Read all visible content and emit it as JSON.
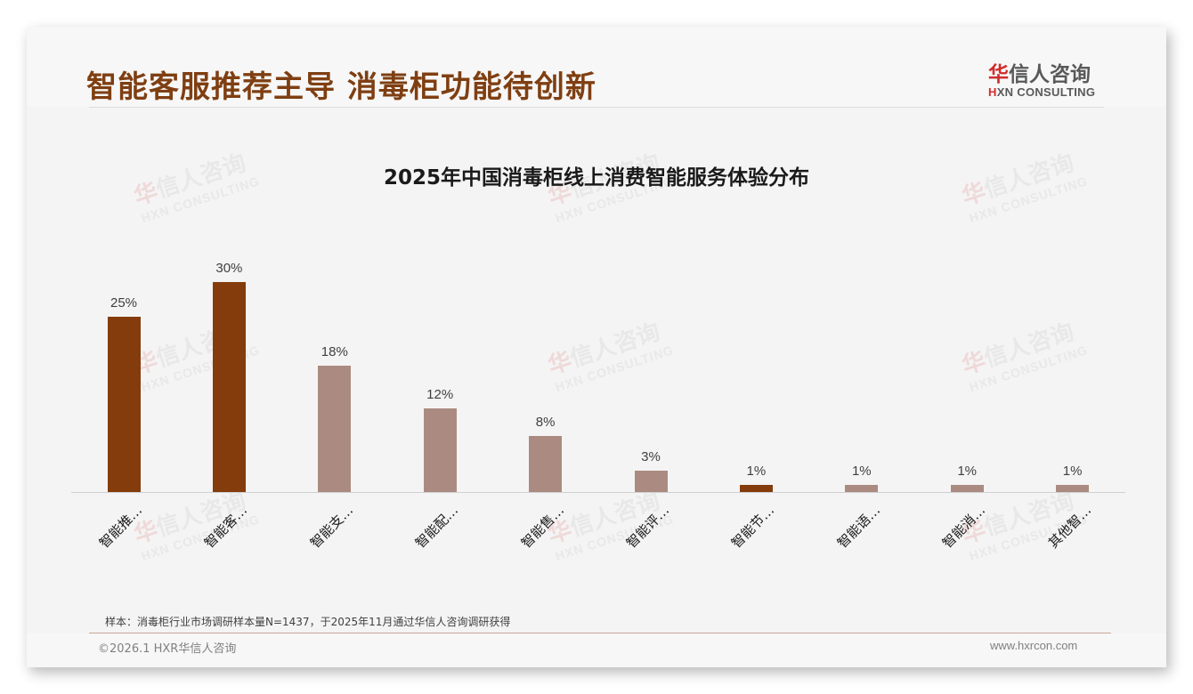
{
  "header": {
    "title": "智能客服推荐主导 消毒柜功能待创新",
    "logo": {
      "cn_first": "华",
      "cn_rest": "信人咨询",
      "en_first": "H",
      "en_rest": "XN CONSULTING"
    }
  },
  "watermark": {
    "cn_first": "华",
    "cn_rest": "信人咨询",
    "en": "HXN CONSULTING"
  },
  "colors": {
    "highlight": "#843c0c",
    "normal": "#ab8b81",
    "title": "#7f3f12",
    "logo_red": "#d22b2b"
  },
  "chart_data": {
    "type": "bar",
    "title": "2025年中国消毒柜线上消费智能服务体验分布",
    "categories": [
      "智能推…",
      "智能客…",
      "智能支…",
      "智能配…",
      "智能售…",
      "智能评…",
      "智能节…",
      "智能语…",
      "智能消…",
      "其他智…"
    ],
    "values": [
      25,
      30,
      18,
      12,
      8,
      3,
      1,
      1,
      1,
      1
    ],
    "value_labels": [
      "25%",
      "30%",
      "18%",
      "12%",
      "8%",
      "3%",
      "1%",
      "1%",
      "1%",
      "1%"
    ],
    "highlighted": [
      true,
      true,
      false,
      false,
      false,
      false,
      true,
      false,
      false,
      false
    ],
    "xlabel": "",
    "ylabel": "",
    "ylim": [
      0,
      36
    ],
    "grid": false,
    "legend": false,
    "unit": "%"
  },
  "footer": {
    "note": "样本：消毒柜行业市场调研样本量N=1437，于2025年11月通过华信人咨询调研获得",
    "copyright": "©2026.1 HXR华信人咨询",
    "website": "www.hxrcon.com"
  }
}
